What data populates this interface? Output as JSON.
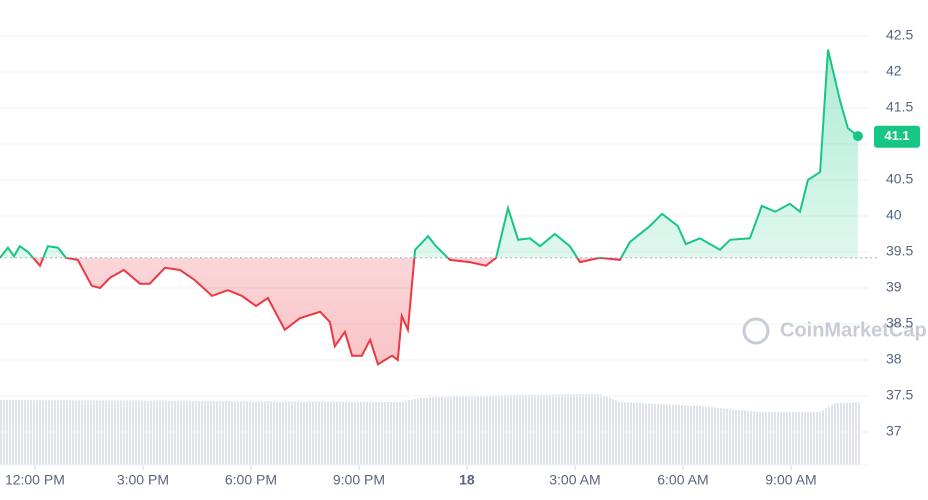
{
  "chart_data": {
    "type": "line",
    "watermark": "CoinMarketCap",
    "x": [
      -0.97,
      -0.75,
      -0.58,
      -0.42,
      -0.19,
      0.14,
      0.36,
      0.64,
      0.86,
      1.19,
      1.58,
      1.81,
      2.08,
      2.47,
      2.92,
      3.19,
      3.61,
      4.03,
      4.44,
      4.92,
      5.36,
      5.75,
      6.14,
      6.47,
      6.94,
      7.36,
      7.92,
      8.19,
      8.33,
      8.61,
      8.81,
      9.08,
      9.31,
      9.53,
      9.92,
      10.08,
      10.19,
      10.36,
      10.56,
      10.92,
      11.14,
      11.53,
      12.08,
      12.53,
      12.81,
      13.14,
      13.42,
      13.75,
      14.03,
      14.44,
      14.86,
      15.14,
      15.69,
      16.25,
      16.53,
      17.08,
      17.42,
      17.86,
      18.08,
      18.47,
      19.03,
      19.31,
      19.86,
      20.19,
      20.56,
      20.97,
      21.25,
      21.47,
      21.81,
      22.03,
      22.36,
      22.58,
      22.86
    ],
    "series": [
      {
        "values": [
          39.42,
          39.56,
          39.44,
          39.58,
          39.5,
          39.31,
          39.58,
          39.56,
          39.42,
          39.39,
          39.03,
          39.0,
          39.14,
          39.25,
          39.06,
          39.06,
          39.28,
          39.25,
          39.11,
          38.89,
          38.97,
          38.89,
          38.75,
          38.86,
          38.42,
          38.58,
          38.67,
          38.53,
          38.19,
          38.39,
          38.06,
          38.06,
          38.28,
          37.94,
          38.06,
          38.0,
          38.61,
          38.42,
          39.53,
          39.72,
          39.58,
          39.39,
          39.36,
          39.31,
          39.42,
          40.11,
          39.67,
          39.69,
          39.58,
          39.75,
          39.58,
          39.36,
          39.42,
          39.39,
          39.64,
          39.86,
          40.03,
          39.86,
          39.61,
          39.69,
          39.53,
          39.67,
          39.69,
          40.14,
          40.06,
          40.17,
          40.06,
          40.5,
          40.61,
          42.31,
          41.61,
          41.22,
          41.11
        ]
      }
    ],
    "up_color": "#16c784",
    "down_color": "#ea3943",
    "baseline": 39.42,
    "last_price": 41.1,
    "xlim": [
      -0.97,
      23.14
    ],
    "xticks": [
      {
        "value": 0,
        "label": "12:00 PM"
      },
      {
        "value": 3,
        "label": "3:00 PM"
      },
      {
        "value": 6,
        "label": "6:00 PM"
      },
      {
        "value": 9,
        "label": "9:00 PM"
      },
      {
        "value": 12,
        "label": "18"
      },
      {
        "value": 15,
        "label": "3:00 AM"
      },
      {
        "value": 18,
        "label": "6:00 AM"
      },
      {
        "value": 21,
        "label": "9:00 AM"
      }
    ],
    "ylim": [
      36.6,
      43.0
    ],
    "yticks": [
      37.0,
      37.5,
      38.0,
      38.5,
      39.0,
      39.5,
      40.0,
      40.5,
      41.0,
      41.5,
      42.0,
      42.5
    ],
    "grid": true
  }
}
